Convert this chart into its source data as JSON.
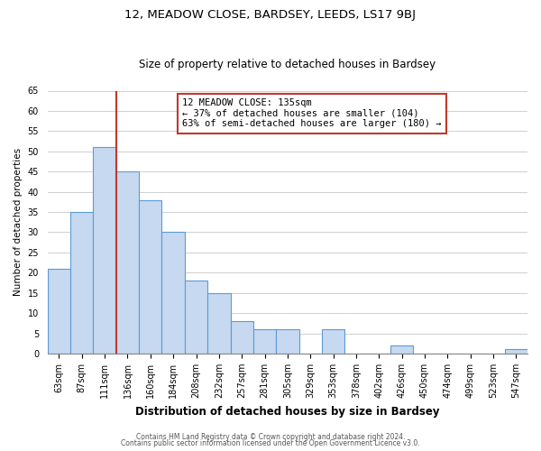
{
  "title": "12, MEADOW CLOSE, BARDSEY, LEEDS, LS17 9BJ",
  "subtitle": "Size of property relative to detached houses in Bardsey",
  "xlabel": "Distribution of detached houses by size in Bardsey",
  "ylabel": "Number of detached properties",
  "bar_labels": [
    "63sqm",
    "87sqm",
    "111sqm",
    "136sqm",
    "160sqm",
    "184sqm",
    "208sqm",
    "232sqm",
    "257sqm",
    "281sqm",
    "305sqm",
    "329sqm",
    "353sqm",
    "378sqm",
    "402sqm",
    "426sqm",
    "450sqm",
    "474sqm",
    "499sqm",
    "523sqm",
    "547sqm"
  ],
  "bar_values": [
    21,
    35,
    51,
    45,
    38,
    30,
    18,
    15,
    8,
    6,
    6,
    0,
    6,
    0,
    0,
    2,
    0,
    0,
    0,
    0,
    1
  ],
  "bar_color": "#c6d9f0",
  "bar_edge_color": "#5b9bd5",
  "vline_x_idx": 3,
  "vline_color": "#c0392b",
  "annotation_line1": "12 MEADOW CLOSE: 135sqm",
  "annotation_line2": "← 37% of detached houses are smaller (104)",
  "annotation_line3": "63% of semi-detached houses are larger (180) →",
  "annotation_box_color": "#ffffff",
  "annotation_box_edge": "#c0392b",
  "ylim": [
    0,
    65
  ],
  "yticks": [
    0,
    5,
    10,
    15,
    20,
    25,
    30,
    35,
    40,
    45,
    50,
    55,
    60,
    65
  ],
  "footer_line1": "Contains HM Land Registry data © Crown copyright and database right 2024.",
  "footer_line2": "Contains public sector information licensed under the Open Government Licence v3.0.",
  "bg_color": "#ffffff",
  "grid_color": "#c8c8c8",
  "title_fontsize": 9.5,
  "subtitle_fontsize": 8.5,
  "xlabel_fontsize": 8.5,
  "ylabel_fontsize": 7.5,
  "tick_fontsize": 7,
  "footer_fontsize": 5.5
}
